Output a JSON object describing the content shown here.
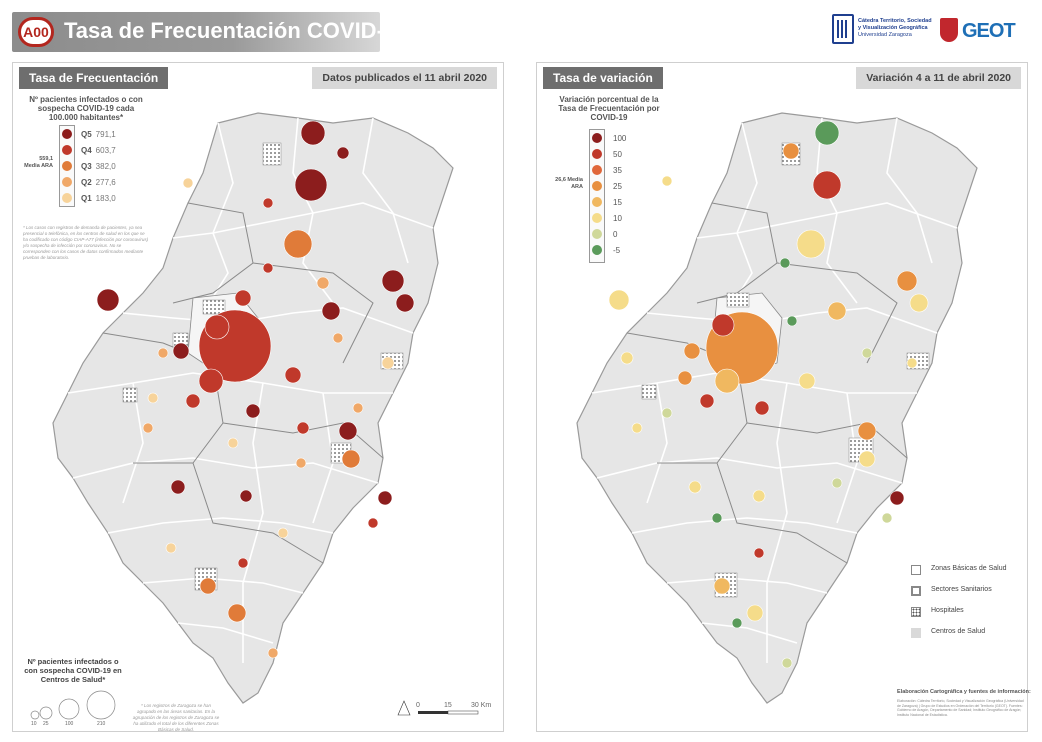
{
  "header": {
    "badge": "A00",
    "title": "Tasa de Frecuentación COVID-19",
    "logos": {
      "catedra_line1": "Cátedra Territorio, Sociedad",
      "catedra_line2": "y Visualización Geográfica",
      "catedra_line3": "Universidad Zaragoza",
      "geot": "GEOT"
    }
  },
  "left_panel": {
    "title": "Tasa de Frecuentación",
    "date": "Datos publicados el 11 abril 2020",
    "legend_title": "Nº pacientes infectados o con sospecha COVID-19 cada 100.000 habitantes*",
    "mean_label": "559,1 Media ARA",
    "classes": [
      {
        "label": "Q5",
        "value": "791,1",
        "color": "#8c1d1d"
      },
      {
        "label": "Q4",
        "value": "603,7",
        "color": "#c0392b"
      },
      {
        "label": "Q3",
        "value": "382,0",
        "color": "#e07b39"
      },
      {
        "label": "Q2",
        "value": "277,6",
        "color": "#f0a868"
      },
      {
        "label": "Q1",
        "value": "183,0",
        "color": "#f7d39a"
      }
    ],
    "note": "* Los casos con registros de demanda de pacientes, ya sea presencial o telefónica, en los centros de salud en los que se ha codificado con código CIAP-A77 (infección por coronavirus) y/o sospecha de infección por coronavirus. No se corresponden con los casos de datos confirmados mediante pruebas de laboratorio.",
    "centros_title": "Nº pacientes infectados o con sospecha COVID-19 en Centros de Salud*",
    "size_labels": [
      "10",
      "25",
      "100",
      "210"
    ],
    "bottom_note": "* Los registros de Zaragoza se han agrupado en las áreas sanitarias. En la agrupación de los registros de Zaragoza se ha utilizado el total de los diferentes Zonas Básicas de Salud.",
    "scale_labels": [
      "0",
      "15",
      "30 Km"
    ]
  },
  "right_panel": {
    "title": "Tasa de variación",
    "date": "Variación 4 a 11 de abril 2020",
    "legend_title": "Variación porcentual de la Tasa de Frecuentación por COVID-19",
    "mean_label": "26,6 Media ARA",
    "classes": [
      {
        "label": "100",
        "color": "#8c1d1d"
      },
      {
        "label": "50",
        "color": "#c0392b"
      },
      {
        "label": "35",
        "color": "#e0673a"
      },
      {
        "label": "25",
        "color": "#e89040"
      },
      {
        "label": "15",
        "color": "#f0b860"
      },
      {
        "label": "10",
        "color": "#f5dc8a"
      },
      {
        "label": "0",
        "color": "#cfd89a"
      },
      {
        "label": "-5",
        "color": "#5a9a5a"
      }
    ],
    "keys": [
      {
        "label": "Zonas Básicas de Salud",
        "kind": "zbs"
      },
      {
        "label": "Sectores Sanitarios",
        "kind": "sector"
      },
      {
        "label": "Hospitales",
        "kind": "hospital"
      },
      {
        "label": "Centros de Salud",
        "kind": "centro"
      }
    ],
    "credits_title": "Elaboración Cartográfica y fuentes de información:",
    "credits": "Elaboración: Cátedra Territorio, Sociedad y Visualización Geográfica (Universidad de Zaragoza) | Grupo de Estudios en Ordenación del Territorio (GEOT). Fuentes: Gobierno de Aragón, Departamento de Sanidad; Instituto Geográfico de Aragón; Instituto Nacional de Estadística."
  },
  "colors": {
    "region_fill": "#e2e2e2",
    "region_stroke": "#ffffff",
    "zbs_fill": "#f3f3f3",
    "hospital_pattern": "#666666",
    "accent": "#b3261e"
  }
}
